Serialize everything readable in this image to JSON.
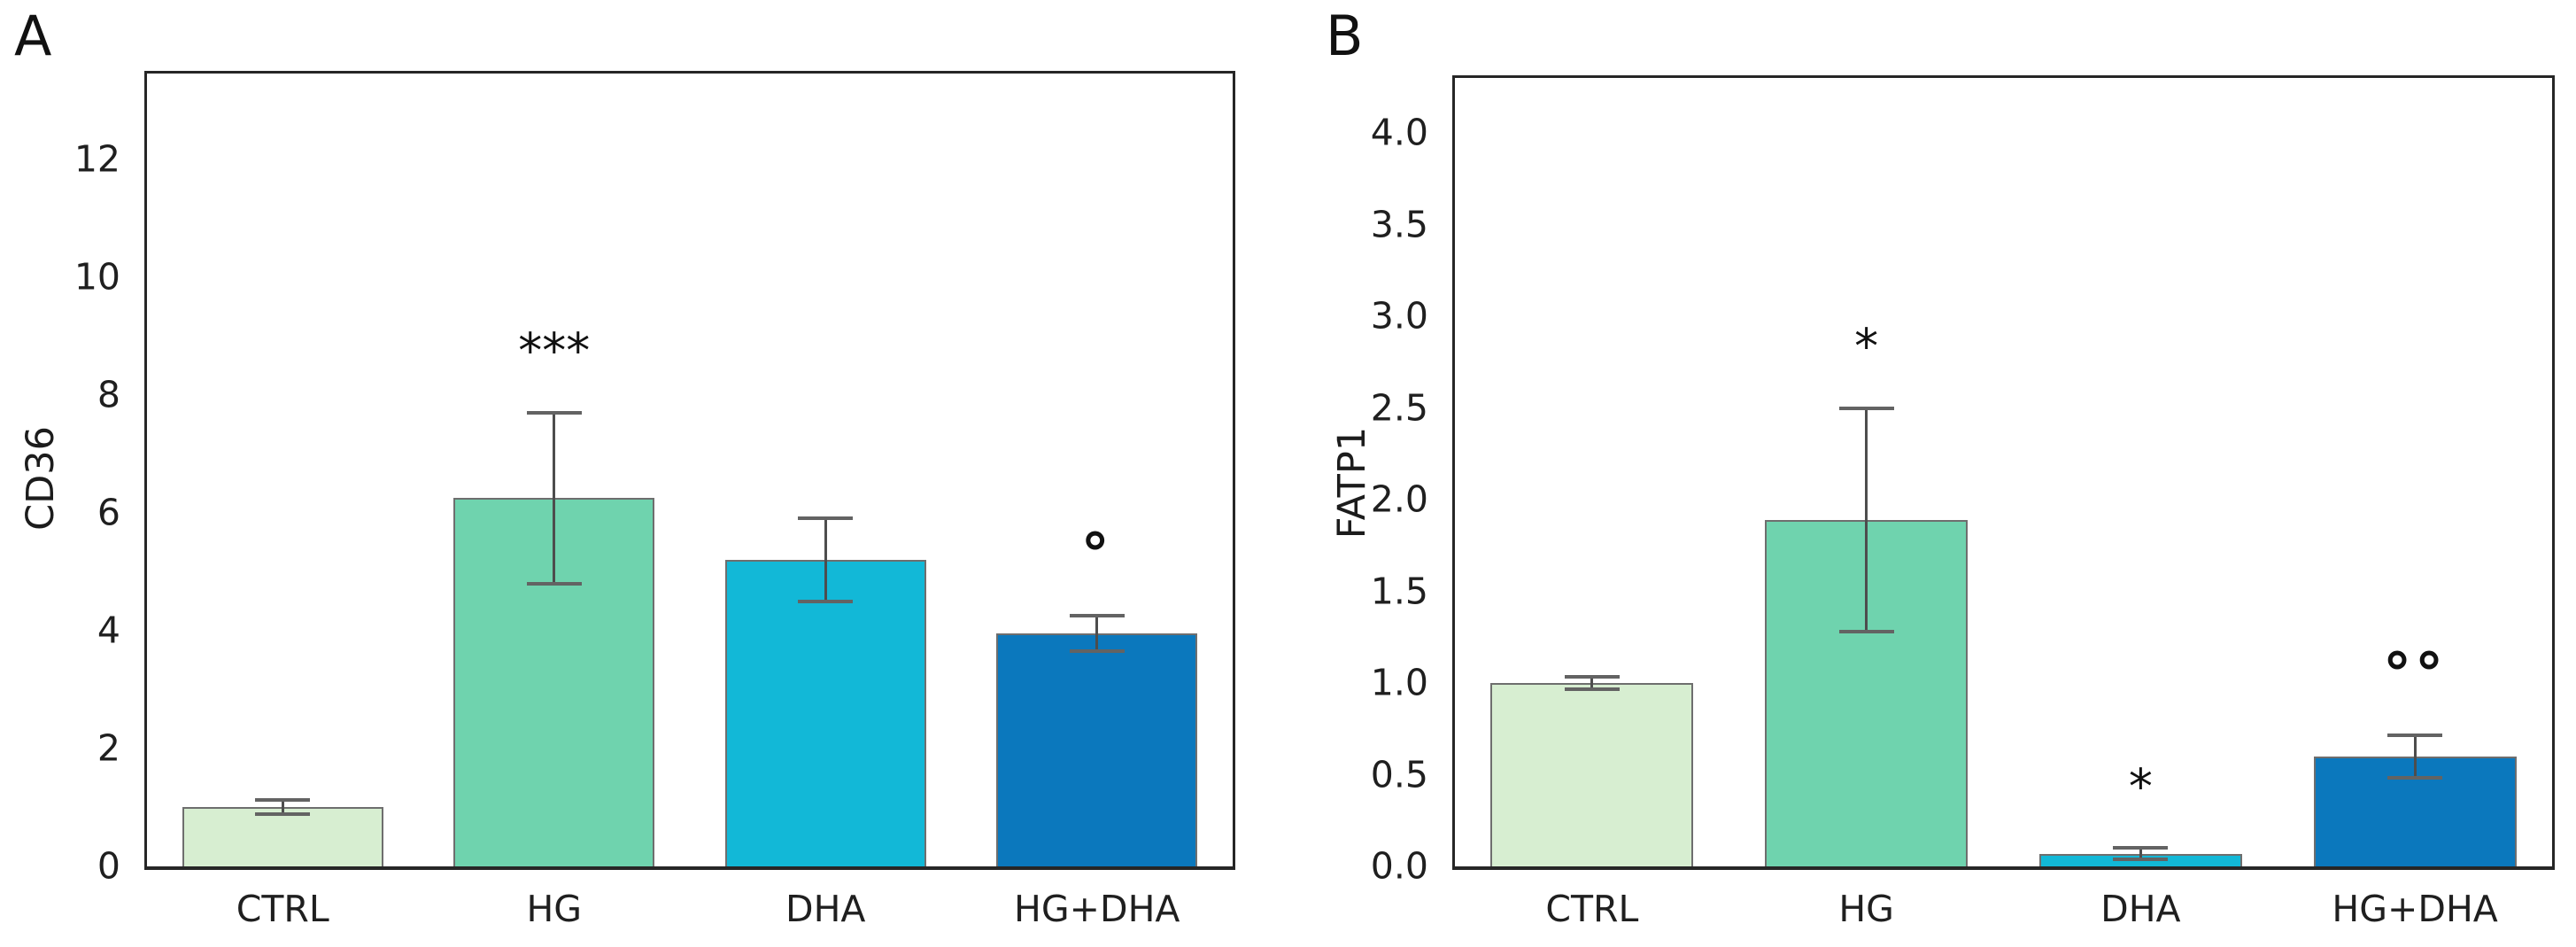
{
  "figure": {
    "background": "#ffffff",
    "axis_color": "#262626",
    "bar_edge_color": "#6e6e6e",
    "error_bar_color": "#4d4d4d"
  },
  "chart_data": [
    {
      "type": "bar",
      "panel_letter": "A",
      "title": "",
      "xlabel": "",
      "ylabel": "CD36",
      "categories": [
        "CTRL",
        "HG",
        "DHA",
        "HG+DHA"
      ],
      "values": [
        1.0,
        6.25,
        5.2,
        3.95
      ],
      "errors": [
        0.12,
        1.45,
        0.7,
        0.3
      ],
      "annotations": [
        null,
        "***",
        null,
        "°"
      ],
      "bar_colors": [
        "#d7eed1",
        "#6fd3ae",
        "#12b8d7",
        "#0b78bd"
      ],
      "ylim": [
        0,
        13.45
      ],
      "yticks": [
        0,
        2,
        4,
        6,
        8,
        10,
        12
      ],
      "ytick_labels": [
        "0",
        "2",
        "4",
        "6",
        "8",
        "10",
        "12"
      ],
      "grid": false,
      "legend": null
    },
    {
      "type": "bar",
      "panel_letter": "B",
      "title": "",
      "xlabel": "",
      "ylabel": "FATP1",
      "categories": [
        "CTRL",
        "HG",
        "DHA",
        "HG+DHA"
      ],
      "values": [
        1.0,
        1.89,
        0.07,
        0.6
      ],
      "errors": [
        0.035,
        0.61,
        0.03,
        0.115
      ],
      "annotations": [
        null,
        "*",
        "*",
        "°°"
      ],
      "bar_colors": [
        "#d7eed1",
        "#6fd3ae",
        "#12b8d7",
        "#0b78bd"
      ],
      "ylim": [
        0,
        4.3
      ],
      "yticks": [
        0.0,
        0.5,
        1.0,
        1.5,
        2.0,
        2.5,
        3.0,
        3.5,
        4.0
      ],
      "ytick_labels": [
        "0.0",
        "0.5",
        "1.0",
        "1.5",
        "2.0",
        "2.5",
        "3.0",
        "3.5",
        "4.0"
      ],
      "grid": false,
      "legend": null
    }
  ]
}
